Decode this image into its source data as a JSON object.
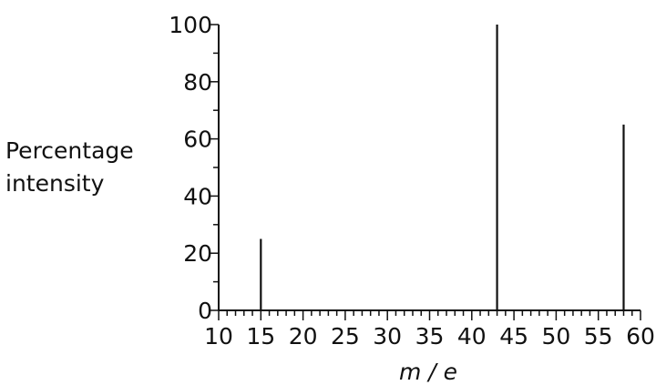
{
  "chart_data": {
    "type": "bar",
    "title": "",
    "xlabel": "m / e",
    "ylabel_lines": [
      "Percentage",
      "intensity"
    ],
    "x": [
      15,
      43,
      58
    ],
    "values": [
      25,
      100,
      65
    ],
    "xlim": [
      10,
      60
    ],
    "ylim": [
      0,
      100
    ],
    "x_major_ticks": [
      10,
      15,
      20,
      25,
      30,
      35,
      40,
      45,
      50,
      55,
      60
    ],
    "x_minor_step": 1,
    "y_major_ticks": [
      0,
      20,
      40,
      60,
      80,
      100
    ],
    "y_minor_step": 10,
    "grid": false,
    "color": "#111111"
  }
}
